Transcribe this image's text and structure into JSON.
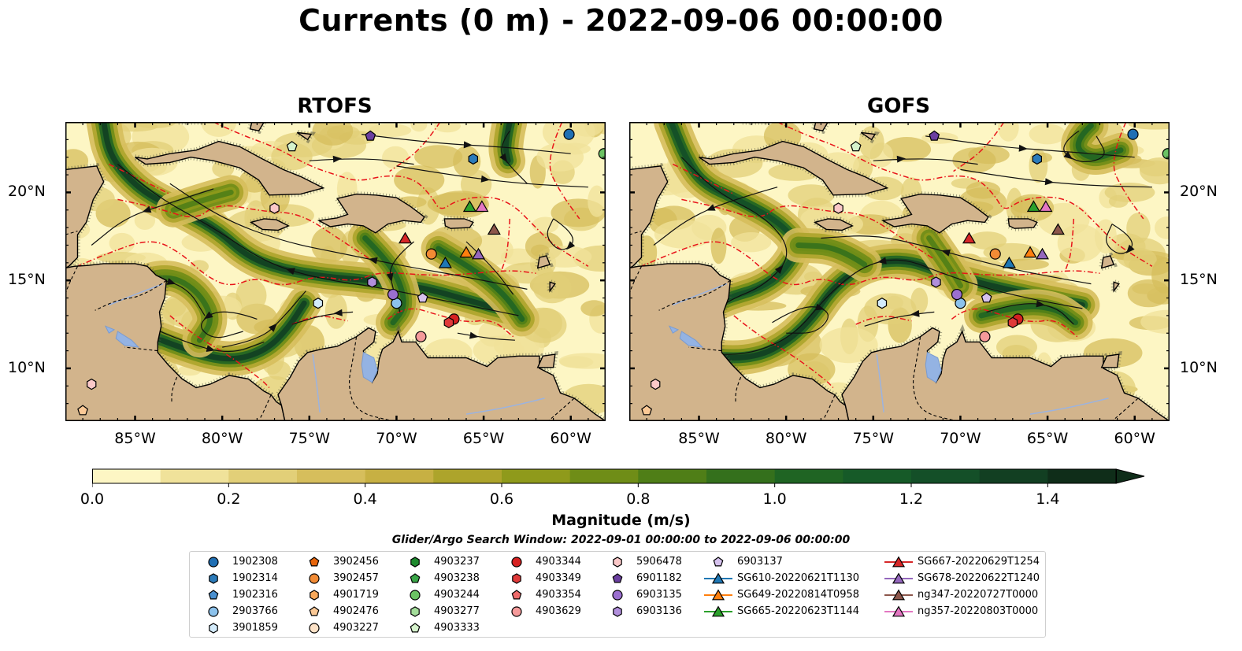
{
  "figure": {
    "title": "Currents (0 m) - 2022-09-06 00:00:00",
    "panels": [
      {
        "title": "RTOFS"
      },
      {
        "title": "GOFS"
      }
    ],
    "colorbar_label": "Magnitude (m/s)",
    "search_window": "Glider/Argo Search Window: 2022-09-01 00:00:00 to 2022-09-06 00:00:00"
  },
  "chart_data": {
    "type": "heatmap",
    "title": "Currents (0 m) - 2022-09-06 00:00:00",
    "subplots": [
      "RTOFS",
      "GOFS"
    ],
    "x_axis": {
      "ticks": [
        "85°W",
        "80°W",
        "75°W",
        "70°W",
        "65°W",
        "60°W"
      ],
      "values": [
        -85,
        -80,
        -75,
        -70,
        -65,
        -60
      ],
      "range": [
        -89,
        -58
      ]
    },
    "y_axis": {
      "ticks": [
        "10°N",
        "15°N",
        "20°N"
      ],
      "values": [
        10,
        15,
        20
      ],
      "range": [
        7,
        24
      ]
    },
    "colorbar": {
      "label": "Magnitude (m/s)",
      "range": [
        0,
        1.5
      ],
      "ticks": [
        "0.0",
        "0.2",
        "0.4",
        "0.6",
        "0.8",
        "1.0",
        "1.2",
        "1.4"
      ],
      "tick_values": [
        0,
        0.2,
        0.4,
        0.6,
        0.8,
        1.0,
        1.2,
        1.4
      ],
      "levels": [
        0,
        0.1,
        0.2,
        0.3,
        0.4,
        0.5,
        0.6,
        0.7,
        0.8,
        0.9,
        1.0,
        1.1,
        1.2,
        1.3,
        1.4,
        1.5
      ],
      "colors": [
        "#fdf6c4",
        "#f0e29a",
        "#e2cf78",
        "#d6be5c",
        "#c7b043",
        "#ada42b",
        "#8f9a1b",
        "#6f8d17",
        "#4f7e17",
        "#34701c",
        "#1f6423",
        "#165a28",
        "#144f28",
        "#123f22",
        "#0f2d19"
      ],
      "extend": "max"
    },
    "legend_placement": "bottom",
    "legend": [
      {
        "label": "1902308",
        "marker": "circle",
        "color": "#1f6fb4"
      },
      {
        "label": "1902314",
        "marker": "hexagon",
        "color": "#2b7bba"
      },
      {
        "label": "1902316",
        "marker": "pentagon",
        "color": "#4a90d0"
      },
      {
        "label": "2903766",
        "marker": "circle",
        "color": "#8cc2ec"
      },
      {
        "label": "3901859",
        "marker": "hexagon",
        "color": "#d3ebfb"
      },
      {
        "label": "3902456",
        "marker": "pentagon",
        "color": "#e8650b"
      },
      {
        "label": "3902457",
        "marker": "circle",
        "color": "#f28b35"
      },
      {
        "label": "4901719",
        "marker": "hexagon",
        "color": "#f8a85a"
      },
      {
        "label": "4902476",
        "marker": "pentagon",
        "color": "#fbc996"
      },
      {
        "label": "4903227",
        "marker": "circle",
        "color": "#fde2c7"
      },
      {
        "label": "4903237",
        "marker": "hexagon",
        "color": "#1e8a2e"
      },
      {
        "label": "4903238",
        "marker": "pentagon",
        "color": "#3aa648"
      },
      {
        "label": "4903244",
        "marker": "circle",
        "color": "#6cc364"
      },
      {
        "label": "4903277",
        "marker": "hexagon",
        "color": "#a3dd9a"
      },
      {
        "label": "4903333",
        "marker": "pentagon",
        "color": "#d5f2cc"
      },
      {
        "label": "4903344",
        "marker": "circle",
        "color": "#d62121"
      },
      {
        "label": "4903349",
        "marker": "hexagon",
        "color": "#e03a3a"
      },
      {
        "label": "4903354",
        "marker": "pentagon",
        "color": "#ee6b6b"
      },
      {
        "label": "4903629",
        "marker": "circle",
        "color": "#f59a9a"
      },
      {
        "label": "5906478",
        "marker": "hexagon",
        "color": "#fbc8c8"
      },
      {
        "label": "6901182",
        "marker": "pentagon",
        "color": "#6b3fa0"
      },
      {
        "label": "6903135",
        "marker": "circle",
        "color": "#9b6fcf"
      },
      {
        "label": "6903136",
        "marker": "hexagon",
        "color": "#b18fdc"
      },
      {
        "label": "6903137",
        "marker": "pentagon",
        "color": "#d6c2ee"
      },
      {
        "label": "SG610-20220621T1130",
        "marker": "triangle-line",
        "color": "#1f77b4"
      },
      {
        "label": "SG649-20220814T0958",
        "marker": "triangle-line",
        "color": "#ff7f0e"
      },
      {
        "label": "SG665-20220623T1144",
        "marker": "triangle-line",
        "color": "#2ca02c"
      },
      {
        "label": "SG667-20220629T1254",
        "marker": "triangle-line",
        "color": "#d62728"
      },
      {
        "label": "SG678-20220622T1240",
        "marker": "triangle-line",
        "color": "#9467bd"
      },
      {
        "label": "ng347-20220727T0000",
        "marker": "triangle-line",
        "color": "#8c564b"
      },
      {
        "label": "ng357-20220803T0000",
        "marker": "triangle-line",
        "color": "#e377c2"
      }
    ],
    "observations": [
      {
        "label": "1902308",
        "lon": -60.1,
        "lat": 23.3
      },
      {
        "label": "1902314",
        "lon": -65.6,
        "lat": 21.9
      },
      {
        "label": "2903766",
        "lon": -70.0,
        "lat": 13.7
      },
      {
        "label": "3901859",
        "lon": -74.5,
        "lat": 13.7
      },
      {
        "label": "3902457",
        "lon": -68.0,
        "lat": 16.5
      },
      {
        "label": "4902476",
        "lon": -88.0,
        "lat": 7.6
      },
      {
        "label": "4903244",
        "lon": -58.1,
        "lat": 22.2
      },
      {
        "label": "4903333",
        "lon": -76.0,
        "lat": 22.6
      },
      {
        "label": "4903344",
        "lon": -66.7,
        "lat": 12.8
      },
      {
        "label": "4903349",
        "lon": -67.0,
        "lat": 12.6
      },
      {
        "label": "4903629",
        "lon": -68.6,
        "lat": 11.8
      },
      {
        "label": "5906478",
        "lon": -87.5,
        "lat": 9.1
      },
      {
        "label": "5906478",
        "lon": -77.0,
        "lat": 19.1
      },
      {
        "label": "6901182",
        "lon": -71.5,
        "lat": 23.2
      },
      {
        "label": "6903135",
        "lon": -70.2,
        "lat": 14.2
      },
      {
        "label": "6903136",
        "lon": -71.4,
        "lat": 14.9
      },
      {
        "label": "6903137",
        "lon": -68.5,
        "lat": 14.0
      },
      {
        "label": "SG610-20220621T1130",
        "lon": -67.2,
        "lat": 16.0
      },
      {
        "label": "SG649-20220814T0958",
        "lon": -66.0,
        "lat": 16.6
      },
      {
        "label": "SG665-20220623T1144",
        "lon": -65.8,
        "lat": 19.2
      },
      {
        "label": "SG667-20220629T1254",
        "lon": -69.5,
        "lat": 17.4
      },
      {
        "label": "SG678-20220622T1240",
        "lon": -65.3,
        "lat": 16.5
      },
      {
        "label": "ng347-20220727T0000",
        "lon": -64.4,
        "lat": 17.9
      },
      {
        "label": "ng357-20220803T0000",
        "lon": -65.1,
        "lat": 19.2
      }
    ]
  }
}
